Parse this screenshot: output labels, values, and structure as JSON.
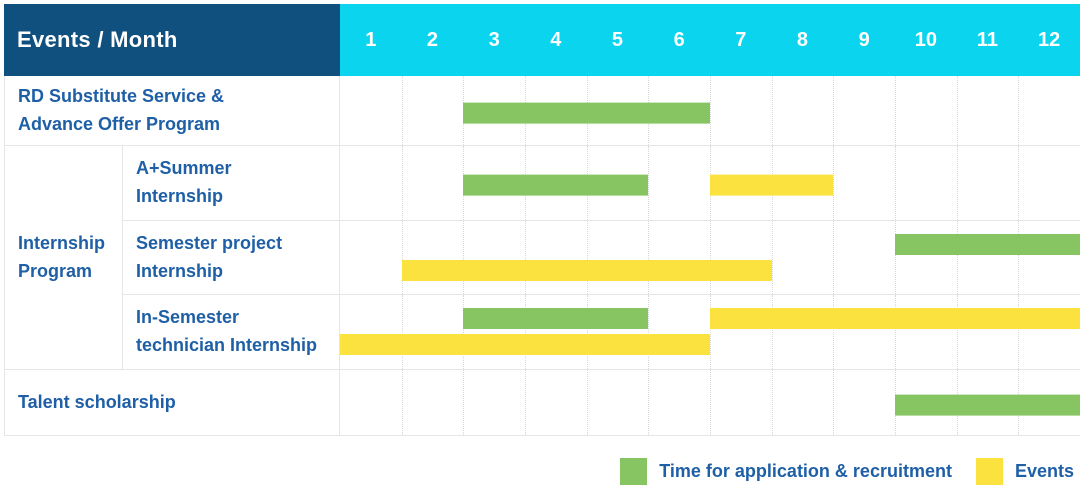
{
  "header": {
    "label": "Events / Month",
    "months": [
      "1",
      "2",
      "3",
      "4",
      "5",
      "6",
      "7",
      "8",
      "9",
      "10",
      "11",
      "12"
    ]
  },
  "group_label": "Internship\nProgram",
  "colors": {
    "navy_header": "#10507F",
    "cyan_header": "#0BD4EE",
    "text_blue": "#1E5FA6",
    "green": "#87C563",
    "yellow": "#FCE23E",
    "gridline": "#e6e6e6"
  },
  "legend": {
    "items": [
      {
        "label": "Time for application & recruitment",
        "color_key": "green"
      },
      {
        "label": "Events",
        "color_key": "yellow"
      }
    ]
  },
  "chart_data": {
    "type": "table",
    "subtype": "gantt",
    "title": "Events / Month",
    "x_categories": [
      1,
      2,
      3,
      4,
      5,
      6,
      7,
      8,
      9,
      10,
      11,
      12
    ],
    "xlabel": "Month",
    "grid": "on",
    "legend_position": "bottom-right",
    "rows": [
      {
        "group": null,
        "label": "RD Substitute Service &\nAdvance Offer Program",
        "bars": [
          {
            "series": "Time for application & recruitment",
            "start_month": 3,
            "end_month": 6,
            "lane": "mid"
          }
        ]
      },
      {
        "group": "Internship Program",
        "label": "A+Summer\nInternship",
        "bars": [
          {
            "series": "Time for application & recruitment",
            "start_month": 3,
            "end_month": 5,
            "lane": "mid"
          },
          {
            "series": "Events",
            "start_month": 7,
            "end_month": 8,
            "lane": "mid"
          }
        ]
      },
      {
        "group": "Internship Program",
        "label": "Semester project\nInternship",
        "bars": [
          {
            "series": "Time for application & recruitment",
            "start_month": 10,
            "end_month": 12,
            "lane": 0
          },
          {
            "series": "Events",
            "start_month": 2,
            "end_month": 7,
            "lane": 1
          }
        ]
      },
      {
        "group": "Internship Program",
        "label": "In-Semester\ntechnician Internship",
        "bars": [
          {
            "series": "Time for application & recruitment",
            "start_month": 3,
            "end_month": 5,
            "lane": 0
          },
          {
            "series": "Events",
            "start_month": 7,
            "end_month": 12,
            "lane": 0
          },
          {
            "series": "Events",
            "start_month": 1,
            "end_month": 6,
            "lane": 1
          }
        ]
      },
      {
        "group": null,
        "label": "Talent scholarship",
        "bars": [
          {
            "series": "Time for application & recruitment",
            "start_month": 10,
            "end_month": 12,
            "lane": "mid"
          }
        ]
      }
    ]
  }
}
